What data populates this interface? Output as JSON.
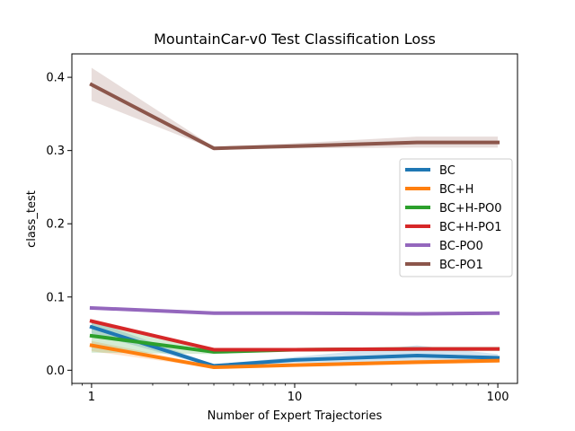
{
  "chart_data": {
    "type": "line",
    "title": "MountainCar-v0 Test Classification Loss",
    "xlabel": "Number of Expert Trajectories",
    "ylabel": "class_test",
    "xscale": "log",
    "xlim": [
      0.8,
      125
    ],
    "ylim": [
      -0.018,
      0.432
    ],
    "xticks": [
      1,
      10,
      100
    ],
    "xtick_labels": [
      "1",
      "10",
      "100"
    ],
    "yticks": [
      0.0,
      0.1,
      0.2,
      0.3,
      0.4
    ],
    "ytick_labels": [
      "0.0",
      "0.1",
      "0.2",
      "0.3",
      "0.4"
    ],
    "grid": false,
    "legend_position": "right",
    "x": [
      1,
      4,
      10,
      40,
      100
    ],
    "series": [
      {
        "name": "BC",
        "color": "#1f77b4",
        "values": [
          0.059,
          0.006,
          0.014,
          0.02,
          0.017
        ],
        "lower": [
          0.05,
          0.004,
          0.01,
          0.01,
          0.012
        ],
        "upper": [
          0.068,
          0.008,
          0.018,
          0.034,
          0.022
        ]
      },
      {
        "name": "BC+H",
        "color": "#ff7f0e",
        "values": [
          0.034,
          0.004,
          0.007,
          0.011,
          0.013
        ],
        "lower": [
          0.026,
          0.003,
          0.005,
          0.008,
          0.01
        ],
        "upper": [
          0.04,
          0.006,
          0.009,
          0.014,
          0.016
        ]
      },
      {
        "name": "BC+H-PO0",
        "color": "#2ca02c",
        "values": [
          0.047,
          0.025,
          0.028,
          0.029,
          0.029
        ],
        "lower": [
          0.024,
          0.022,
          0.026,
          0.027,
          0.027
        ],
        "upper": [
          0.065,
          0.028,
          0.03,
          0.031,
          0.031
        ]
      },
      {
        "name": "BC+H-PO1",
        "color": "#d62728",
        "values": [
          0.067,
          0.028,
          0.028,
          0.029,
          0.029
        ],
        "lower": [
          0.064,
          0.026,
          0.026,
          0.027,
          0.027
        ],
        "upper": [
          0.07,
          0.03,
          0.03,
          0.031,
          0.031
        ]
      },
      {
        "name": "BC-PO0",
        "color": "#9467bd",
        "values": [
          0.085,
          0.078,
          0.078,
          0.077,
          0.078
        ],
        "lower": [
          0.083,
          0.077,
          0.077,
          0.076,
          0.077
        ],
        "upper": [
          0.087,
          0.079,
          0.079,
          0.078,
          0.079
        ]
      },
      {
        "name": "BC-PO1",
        "color": "#8c564b",
        "values": [
          0.39,
          0.303,
          0.306,
          0.311,
          0.311
        ],
        "lower": [
          0.368,
          0.302,
          0.303,
          0.304,
          0.304
        ],
        "upper": [
          0.413,
          0.305,
          0.31,
          0.319,
          0.319
        ]
      }
    ]
  }
}
